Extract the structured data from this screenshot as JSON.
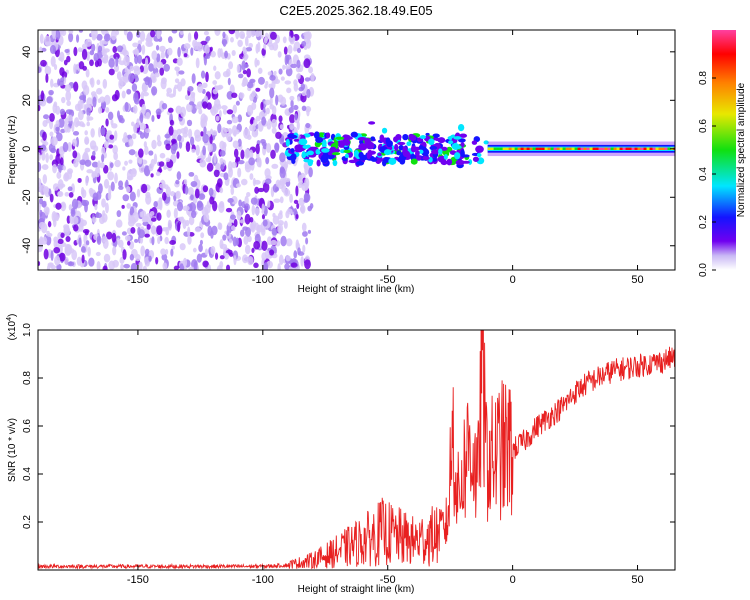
{
  "title": "C2E5.2025.362.18.49.E05",
  "chart_data": [
    {
      "type": "heatmap",
      "xlabel": "Height of straight line (km)",
      "ylabel": "Frequency (Hz)",
      "xlim": [
        -190,
        65
      ],
      "ylim": [
        -50,
        49
      ],
      "xticks": [
        -150,
        -100,
        -50,
        0,
        50
      ],
      "yticks": [
        -40,
        -20,
        0,
        20,
        40
      ],
      "colorbar": {
        "label": "Normalized spectral amplitude",
        "range": [
          0,
          1
        ],
        "ticks": [
          "0.0",
          "0.2",
          "0.4",
          "0.6",
          "0.8"
        ],
        "tick_values": [
          0,
          0.2,
          0.4,
          0.6,
          0.8
        ],
        "colors": [
          "#ffffff",
          "#b59df0",
          "#7000f0",
          "#1414ff",
          "#00e6ff",
          "#10e010",
          "#e8e800",
          "#ff8000",
          "#ff0000",
          "#ff40a0"
        ]
      },
      "description_regions": [
        {
          "x_range": [
            -190,
            -80
          ],
          "freq_range": [
            -50,
            49
          ],
          "level": 0.15
        },
        {
          "x_range": [
            -90,
            -10
          ],
          "freq_range": [
            -10,
            8
          ],
          "level": 0.3
        },
        {
          "x_range": [
            -10,
            65
          ],
          "freq_range": [
            -2,
            2
          ],
          "level": 0.8
        }
      ]
    },
    {
      "type": "line",
      "xlabel": "Height of straight line (km)",
      "ylabel": "SNR (10 * v/v)",
      "y_multiplier": "(x10",
      "y_multiplier_exp": "4",
      "y_multiplier_close": ")",
      "xlim": [
        -190,
        65
      ],
      "ylim": [
        0,
        1.0
      ],
      "xticks": [
        -150,
        -100,
        -50,
        0,
        50
      ],
      "yticks": [
        "0.2",
        "0.4",
        "0.6",
        "0.8",
        "1.0"
      ],
      "ytick_values": [
        0.2,
        0.4,
        0.6,
        0.8,
        1.0
      ],
      "series": [
        {
          "color": "#e82020",
          "x": [
            -190,
            -100,
            -90,
            -80,
            -72,
            -65,
            -58,
            -52,
            -46,
            -40,
            -35,
            -30,
            -26,
            -24,
            -22,
            -20,
            -17,
            -14,
            -12,
            -11,
            -9,
            -5,
            0,
            5,
            10,
            15,
            20,
            25,
            30,
            40,
            50,
            60,
            65
          ],
          "y": [
            0.015,
            0.015,
            0.02,
            0.04,
            0.07,
            0.1,
            0.13,
            0.16,
            0.14,
            0.12,
            0.13,
            0.15,
            0.2,
            0.6,
            0.3,
            0.4,
            0.55,
            0.35,
            1.0,
            0.5,
            0.45,
            0.5,
            0.5,
            0.54,
            0.6,
            0.64,
            0.68,
            0.74,
            0.78,
            0.83,
            0.85,
            0.87,
            0.89
          ]
        }
      ]
    }
  ]
}
